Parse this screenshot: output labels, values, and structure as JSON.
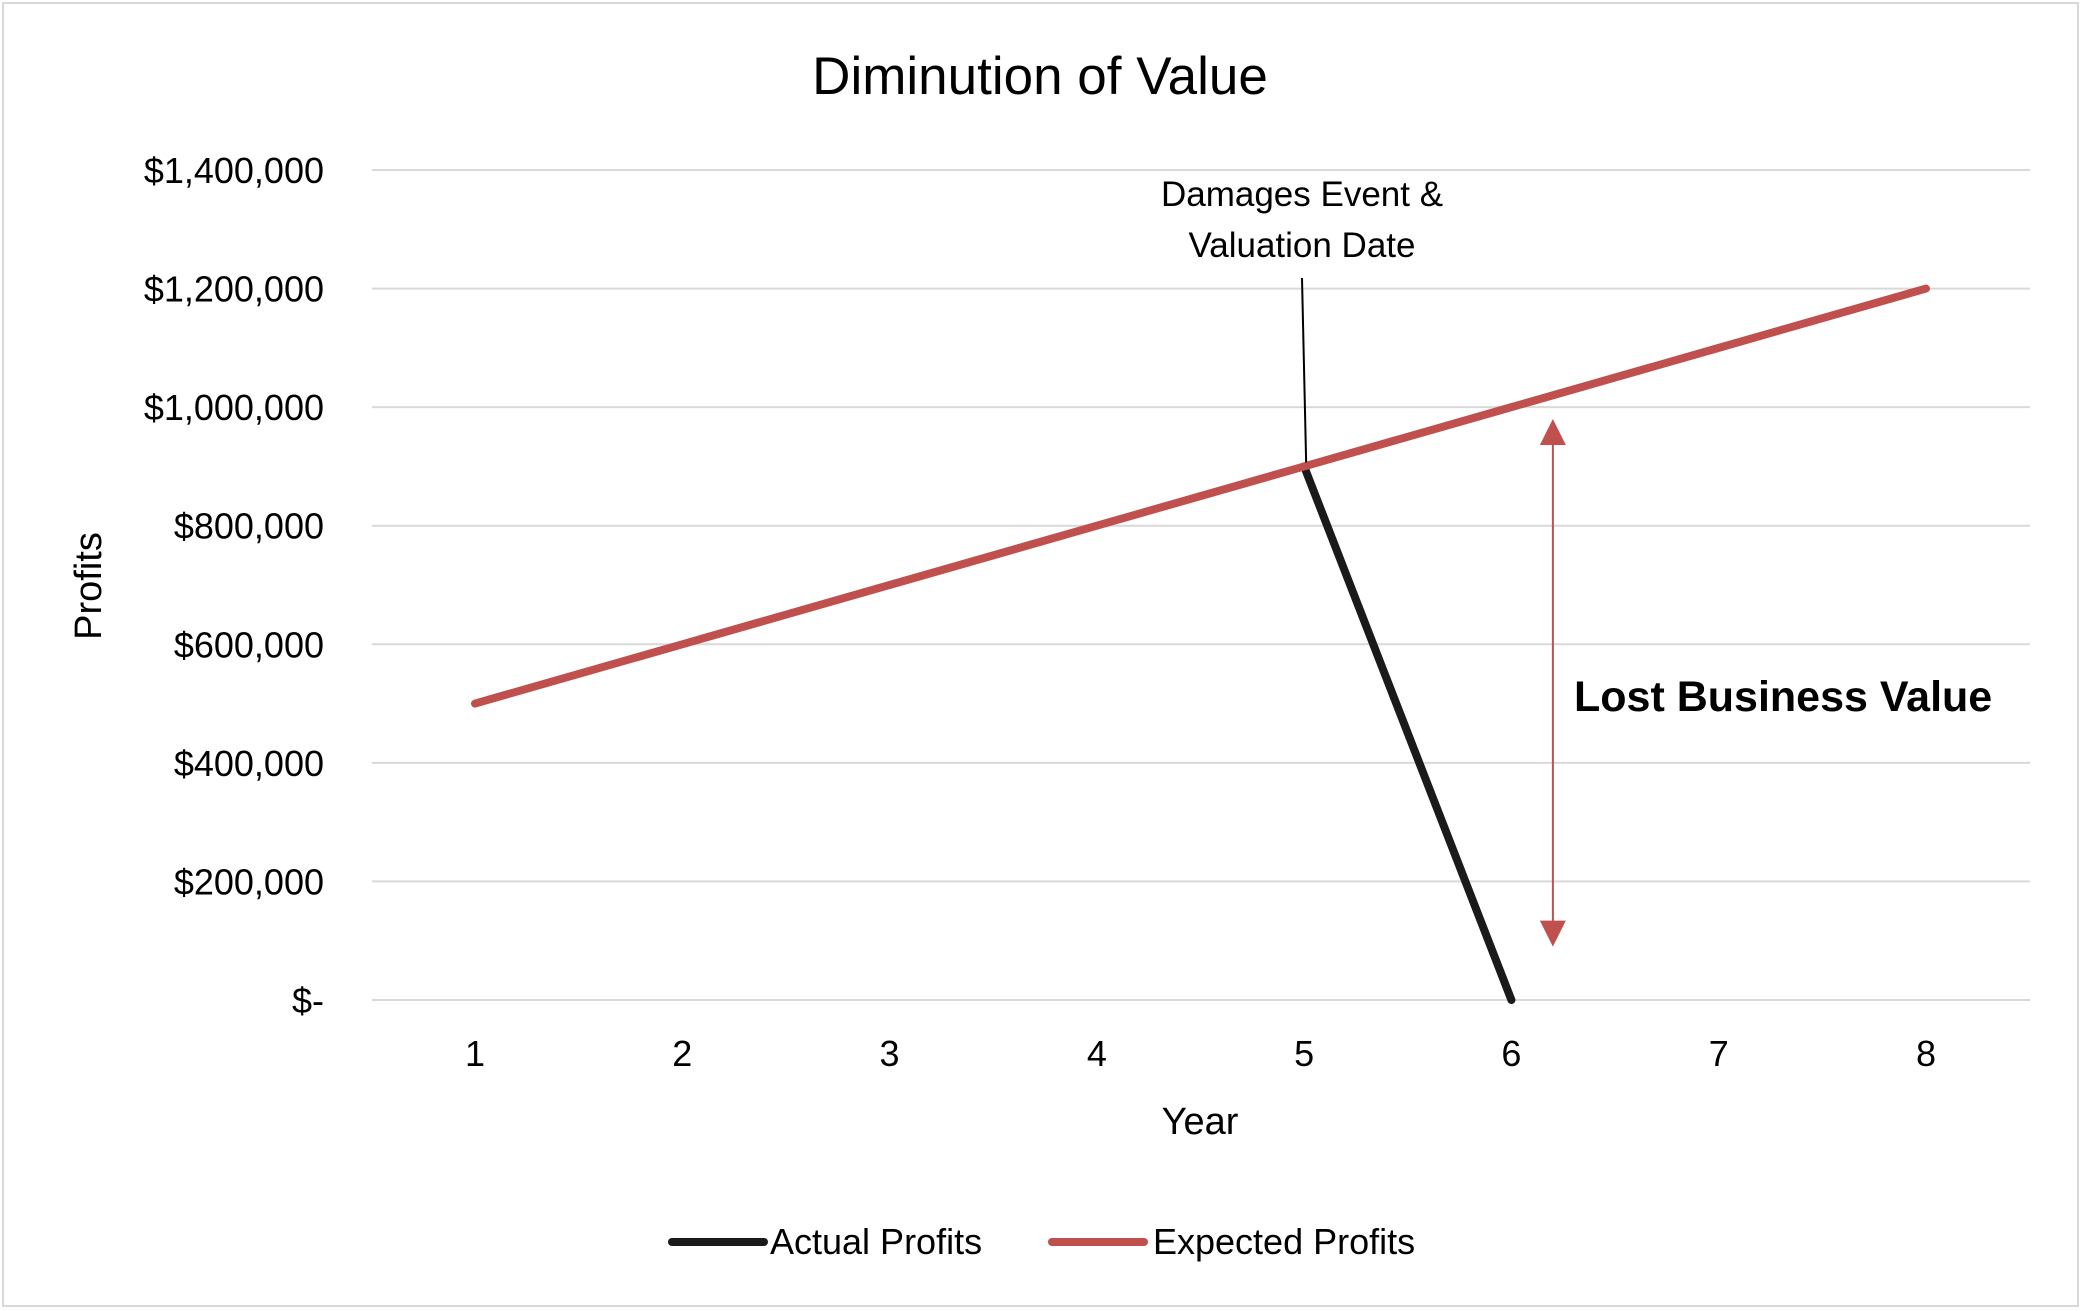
{
  "chart_data": {
    "type": "line",
    "title": "Diminution of Value",
    "xlabel": "Year",
    "ylabel": "Profits",
    "categories": [
      "1",
      "2",
      "3",
      "4",
      "5",
      "6",
      "7",
      "8"
    ],
    "y_ticks": [
      {
        "value": 1400000,
        "label": "$1,400,000"
      },
      {
        "value": 1200000,
        "label": "$1,200,000"
      },
      {
        "value": 1000000,
        "label": "$1,000,000"
      },
      {
        "value": 800000,
        "label": "$800,000"
      },
      {
        "value": 600000,
        "label": "$600,000"
      },
      {
        "value": 400000,
        "label": "$400,000"
      },
      {
        "value": 200000,
        "label": "$200,000"
      },
      {
        "value": 0,
        "label": "$-"
      }
    ],
    "ylim": [
      0,
      1400000
    ],
    "grid": true,
    "legend_position": "bottom",
    "series": [
      {
        "name": "Actual Profits",
        "color": "#1a1a1a",
        "x": [
          5,
          6
        ],
        "values": [
          900000,
          0
        ]
      },
      {
        "name": "Expected Profits",
        "color": "#c0504d",
        "x": [
          1,
          2,
          3,
          4,
          5,
          6,
          7,
          8
        ],
        "values": [
          500000,
          600000,
          700000,
          800000,
          900000,
          1000000,
          1100000,
          1200000
        ]
      }
    ],
    "annotations": {
      "event_line1": "Damages Event &",
      "event_line2": "Valuation Date",
      "lost_value": "Lost Business Value",
      "lost_value_color": "#c0504d",
      "arrow_x": 6.2,
      "arrow_range": [
        90000,
        980000
      ]
    }
  }
}
